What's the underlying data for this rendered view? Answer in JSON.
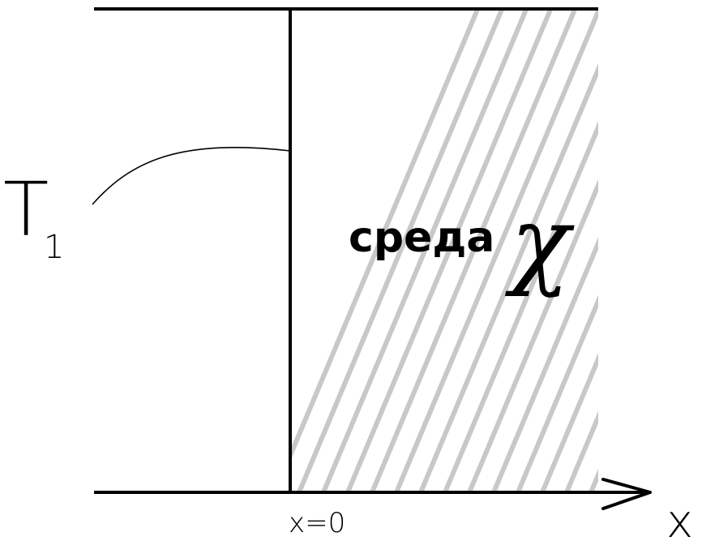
{
  "labels": {
    "left_temperature": "T",
    "left_temperature_subscript": "1",
    "medium": "среда",
    "medium_symbol": "χ",
    "origin": "x=0",
    "axis": "x"
  },
  "colors": {
    "line": "#000000",
    "hatch": "#c8c8c8",
    "background": "#ffffff"
  }
}
